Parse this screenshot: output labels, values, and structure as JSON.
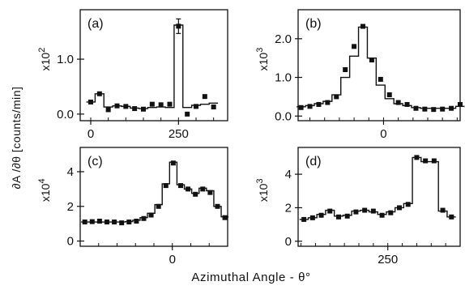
{
  "figure": {
    "ylabel": "∂A /∂θ  [counts/min]",
    "xlabel": "Azimuthal Angle - θ°"
  },
  "chart_data": [
    {
      "panel": "(a)",
      "type": "scatter",
      "multiplier": "x10",
      "exponent": "2",
      "xticks": [
        0,
        250
      ],
      "yticks": [
        "0.0",
        "1.0"
      ],
      "xlim": [
        -30,
        390
      ],
      "ylim": [
        -0.12,
        1.9
      ],
      "x": [
        0,
        25,
        50,
        75,
        100,
        125,
        150,
        175,
        200,
        225,
        250,
        275,
        300,
        325,
        350
      ],
      "points": [
        0.22,
        0.37,
        0.08,
        0.15,
        0.14,
        0.1,
        0.09,
        0.18,
        0.17,
        0.18,
        1.6,
        0.0,
        0.14,
        0.32,
        0.13
      ],
      "step": [
        0.22,
        0.37,
        0.13,
        0.15,
        0.14,
        0.11,
        0.1,
        0.12,
        0.13,
        0.12,
        1.62,
        0.12,
        0.16,
        0.18,
        0.2
      ],
      "errorbar_at": 250
    },
    {
      "panel": "(b)",
      "type": "scatter",
      "multiplier": "x10",
      "exponent": "3",
      "xticks": [
        0
      ],
      "yticks": [
        "0.0",
        "1.0",
        "2.0"
      ],
      "xlim": [
        -145,
        130
      ],
      "ylim": [
        -0.12,
        2.75
      ],
      "x": [
        -140,
        -125,
        -110,
        -95,
        -80,
        -65,
        -50,
        -35,
        -20,
        -5,
        10,
        25,
        40,
        55,
        70,
        85,
        100,
        115,
        130
      ],
      "points": [
        0.22,
        0.25,
        0.3,
        0.35,
        0.5,
        1.2,
        1.8,
        2.32,
        1.45,
        0.95,
        0.55,
        0.35,
        0.3,
        0.2,
        0.18,
        0.17,
        0.18,
        0.2,
        0.3
      ],
      "step": [
        0.24,
        0.27,
        0.32,
        0.38,
        0.55,
        1.0,
        1.55,
        2.3,
        1.5,
        0.8,
        0.45,
        0.32,
        0.27,
        0.22,
        0.2,
        0.2,
        0.2,
        0.2,
        0.25
      ]
    },
    {
      "panel": "(c)",
      "type": "scatter",
      "multiplier": "x10",
      "exponent": "4",
      "xticks": [
        0
      ],
      "yticks": [
        "0",
        "2",
        "4"
      ],
      "xlim": [
        -100,
        60
      ],
      "ylim": [
        -0.3,
        5.4
      ],
      "x": [
        -95,
        -87,
        -79,
        -71,
        -63,
        -55,
        -47,
        -39,
        -31,
        -23,
        -15,
        -7,
        1,
        9,
        17,
        25,
        33,
        41,
        49,
        57
      ],
      "points": [
        1.1,
        1.12,
        1.15,
        1.1,
        1.1,
        1.05,
        1.1,
        1.15,
        1.3,
        1.5,
        2.0,
        3.2,
        4.5,
        3.2,
        3.0,
        2.7,
        3.0,
        2.8,
        2.0,
        1.35
      ],
      "step": [
        1.1,
        1.1,
        1.1,
        1.1,
        1.1,
        1.1,
        1.12,
        1.2,
        1.35,
        1.6,
        2.1,
        3.3,
        4.55,
        3.25,
        3.0,
        2.75,
        3.05,
        2.9,
        2.0,
        1.4
      ]
    },
    {
      "panel": "(d)",
      "type": "scatter",
      "multiplier": "x10",
      "exponent": "3",
      "xticks": [
        250
      ],
      "yticks": [
        "0",
        "2",
        "4"
      ],
      "xlim": [
        95,
        375
      ],
      "ylim": [
        -0.3,
        5.6
      ],
      "x": [
        105,
        120,
        135,
        150,
        165,
        180,
        195,
        210,
        225,
        240,
        255,
        270,
        285,
        300,
        315,
        330,
        345,
        360
      ],
      "points": [
        1.3,
        1.4,
        1.55,
        1.8,
        1.45,
        1.5,
        1.75,
        1.85,
        1.8,
        1.55,
        1.7,
        2.0,
        2.2,
        5.0,
        4.8,
        4.8,
        1.85,
        1.45
      ],
      "step": [
        1.3,
        1.4,
        1.6,
        1.85,
        1.5,
        1.55,
        1.8,
        1.85,
        1.75,
        1.6,
        1.75,
        2.0,
        2.25,
        5.0,
        4.75,
        4.75,
        1.8,
        1.45
      ]
    }
  ]
}
